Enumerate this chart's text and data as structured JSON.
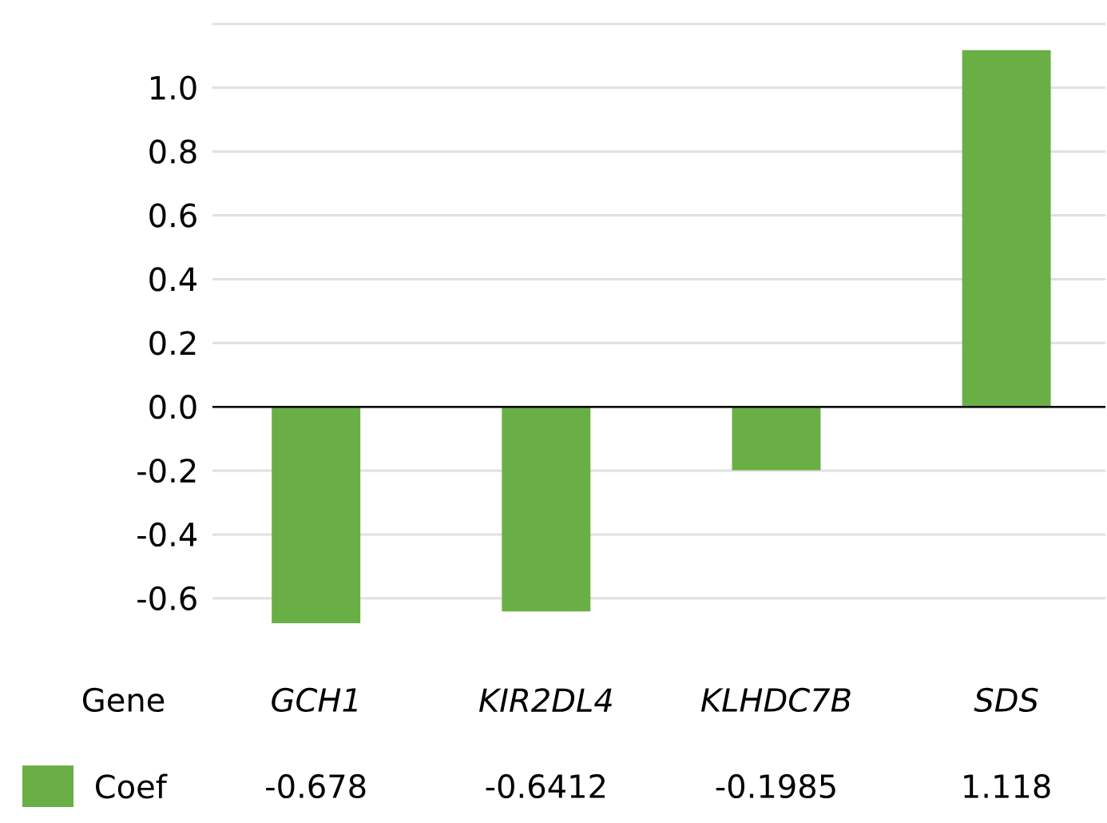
{
  "chart_data": {
    "type": "bar",
    "xlabel": "Gene",
    "categories": [
      "GCH1",
      "KIR2DL4",
      "KLHDC7B",
      "SDS"
    ],
    "series": [
      {
        "name": "Coef",
        "color": "#6aaf45",
        "values": [
          -0.678,
          -0.6412,
          -0.1985,
          1.118
        ],
        "value_labels": [
          "-0.678",
          "-0.6412",
          "-0.1985",
          "1.118"
        ]
      }
    ],
    "yticks": [
      {
        "value": -0.6,
        "label": "-0.6"
      },
      {
        "value": -0.4,
        "label": "-0.4"
      },
      {
        "value": -0.2,
        "label": "-0.2"
      },
      {
        "value": 0,
        "label": "0.0"
      },
      {
        "value": 0.2,
        "label": "0.2"
      },
      {
        "value": 0.4,
        "label": "0.4"
      },
      {
        "value": 0.6,
        "label": "0.6"
      },
      {
        "value": 0.8,
        "label": "0.8"
      },
      {
        "value": 1.0,
        "label": "1.0"
      },
      {
        "value": 1.2,
        "label": null
      }
    ],
    "ylim": [
      -0.678,
      1.2
    ],
    "grid": "y",
    "legend": "bottom left"
  }
}
